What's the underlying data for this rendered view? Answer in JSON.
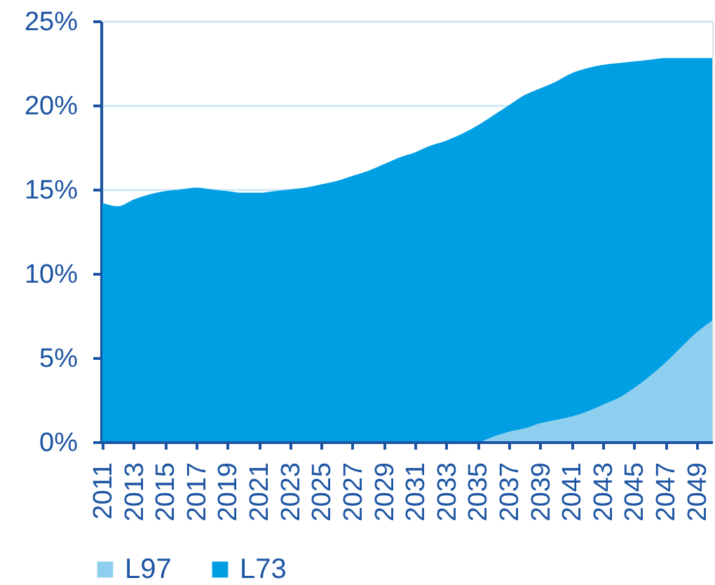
{
  "chart_data": {
    "type": "area",
    "stacked": true,
    "x": [
      2011,
      2012,
      2013,
      2014,
      2015,
      2016,
      2017,
      2018,
      2019,
      2020,
      2021,
      2022,
      2023,
      2024,
      2025,
      2026,
      2027,
      2028,
      2029,
      2030,
      2031,
      2032,
      2033,
      2034,
      2035,
      2036,
      2037,
      2038,
      2039,
      2040,
      2041,
      2042,
      2043,
      2044,
      2045,
      2046,
      2047,
      2048,
      2049,
      2050
    ],
    "xlim": [
      2011,
      2050
    ],
    "xticks": [
      2011,
      2013,
      2015,
      2017,
      2019,
      2021,
      2023,
      2025,
      2027,
      2029,
      2031,
      2033,
      2035,
      2037,
      2039,
      2041,
      2043,
      2045,
      2047,
      2049
    ],
    "ylim": [
      0,
      25
    ],
    "yticks": [
      {
        "value": 0,
        "label": "0%"
      },
      {
        "value": 5,
        "label": "5%"
      },
      {
        "value": 10,
        "label": "10%"
      },
      {
        "value": 15,
        "label": "15%"
      },
      {
        "value": 20,
        "label": "20%"
      },
      {
        "value": 25,
        "label": "25%"
      }
    ],
    "grid": "y",
    "legend": "bottom",
    "series": [
      {
        "name": "L97",
        "color": "#8ecff0",
        "values": [
          0,
          0,
          0,
          0,
          0,
          0,
          0,
          0,
          0,
          0,
          0,
          0,
          0,
          0,
          0,
          0,
          0,
          0,
          0,
          0,
          0,
          0,
          0,
          0,
          0,
          0.3,
          0.6,
          0.8,
          1.1,
          1.3,
          1.5,
          1.8,
          2.2,
          2.6,
          3.2,
          3.9,
          4.7,
          5.6,
          6.5,
          7.2
        ]
      },
      {
        "name": "L73",
        "color": "#009fe3",
        "values": [
          14.2,
          14.0,
          14.4,
          14.7,
          14.9,
          15.0,
          15.1,
          15.0,
          14.9,
          14.8,
          14.8,
          14.9,
          15.0,
          15.1,
          15.3,
          15.5,
          15.8,
          16.1,
          16.5,
          16.9,
          17.2,
          17.6,
          17.9,
          18.3,
          18.8,
          19.1,
          19.4,
          19.8,
          19.9,
          20.1,
          20.4,
          20.4,
          20.2,
          19.9,
          19.4,
          18.8,
          18.1,
          17.2,
          16.3,
          15.6
        ]
      }
    ]
  }
}
